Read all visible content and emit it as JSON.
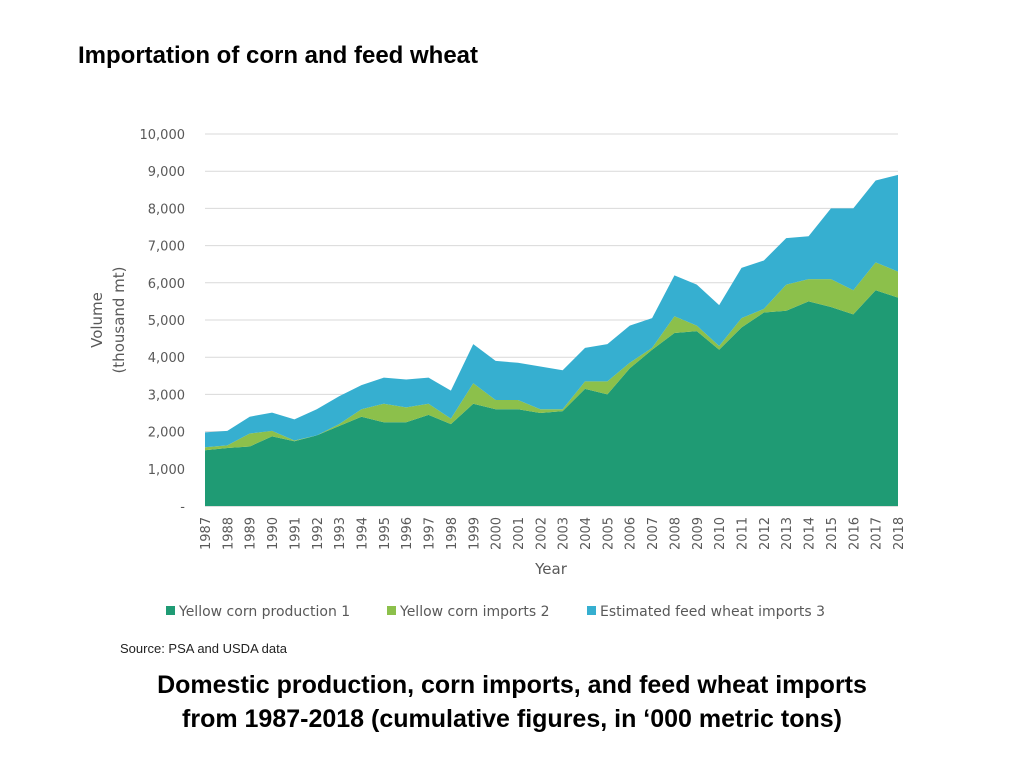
{
  "slide_title": "Importation of corn and feed wheat",
  "source": "Source: PSA and USDA data",
  "caption": {
    "line1": "Domestic production, corn imports, and feed  wheat imports",
    "line2": "from 1987-2018 (cumulative figures, in ‘000 metric tons)"
  },
  "colors": {
    "production": "#1f9b74",
    "corn_imports": "#8cc04b",
    "wheat_imports": "#36afd0",
    "grid": "#d9d9d9",
    "axis": "#bfbfbf"
  },
  "chart_data": {
    "type": "area",
    "stacked": true,
    "title": "",
    "xlabel": "Year",
    "ylabel": "Volume (thousand mt)",
    "ylabel_lines": [
      "Volume",
      "(thousand mt)"
    ],
    "ylim": [
      0,
      10000
    ],
    "yticks": [
      0,
      1000,
      2000,
      3000,
      4000,
      5000,
      6000,
      7000,
      8000,
      9000,
      10000
    ],
    "ytick_labels": [
      "-",
      "1,000",
      "2,000",
      "3,000",
      "4,000",
      "5,000",
      "6,000",
      "7,000",
      "8,000",
      "9,000",
      "10,000"
    ],
    "grid": true,
    "legend_position": "bottom",
    "x": [
      "1987",
      "1988",
      "1989",
      "1990",
      "1991",
      "1992",
      "1993",
      "1994",
      "1995",
      "1996",
      "1997",
      "1998",
      "1999",
      "2000",
      "2001",
      "2002",
      "2003",
      "2004",
      "2005",
      "2006",
      "2007",
      "2008",
      "2009",
      "2010",
      "2011",
      "2012",
      "2013",
      "2014",
      "2015",
      "2016",
      "2017",
      "2018"
    ],
    "series": [
      {
        "name": "Yellow corn production 1",
        "color_key": "production",
        "values": [
          1500,
          1560,
          1600,
          1870,
          1740,
          1900,
          2150,
          2400,
          2250,
          2250,
          2450,
          2200,
          2750,
          2600,
          2600,
          2500,
          2550,
          3150,
          3000,
          3700,
          4200,
          4650,
          4700,
          4200,
          4800,
          5200,
          5250,
          5500,
          5350,
          5150,
          5800,
          5600
        ]
      },
      {
        "name": "Yellow corn imports 2",
        "color_key": "corn_imports",
        "values": [
          80,
          70,
          350,
          150,
          20,
          0,
          50,
          200,
          500,
          400,
          300,
          150,
          550,
          250,
          250,
          100,
          50,
          200,
          350,
          150,
          50,
          450,
          150,
          100,
          250,
          100,
          700,
          600,
          750,
          650,
          750,
          700
        ]
      },
      {
        "name": "Estimated feed wheat imports 3",
        "color_key": "wheat_imports",
        "values": [
          400,
          390,
          450,
          490,
          570,
          700,
          750,
          650,
          700,
          750,
          700,
          750,
          1050,
          1050,
          1000,
          1150,
          1050,
          900,
          1000,
          1000,
          800,
          1100,
          1100,
          1100,
          1350,
          1300,
          1250,
          1150,
          1900,
          2200,
          2200,
          2600
        ]
      }
    ]
  }
}
